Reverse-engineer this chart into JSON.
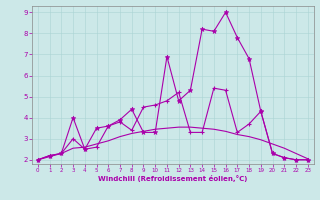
{
  "xlabel": "Windchill (Refroidissement éolien,°C)",
  "xlim": [
    -0.5,
    23.5
  ],
  "ylim": [
    1.8,
    9.3
  ],
  "xticks": [
    0,
    1,
    2,
    3,
    4,
    5,
    6,
    7,
    8,
    9,
    10,
    11,
    12,
    13,
    14,
    15,
    16,
    17,
    18,
    19,
    20,
    21,
    22,
    23
  ],
  "yticks": [
    2,
    3,
    4,
    5,
    6,
    7,
    8,
    9
  ],
  "bg_color": "#cce8e8",
  "line_color": "#aa00aa",
  "smooth_x": [
    0,
    1,
    2,
    3,
    4,
    5,
    6,
    7,
    8,
    9,
    10,
    11,
    12,
    13,
    14,
    15,
    16,
    17,
    18,
    19,
    20,
    21,
    22,
    23
  ],
  "smooth_y": [
    2.0,
    2.15,
    2.3,
    2.55,
    2.6,
    2.75,
    2.9,
    3.1,
    3.25,
    3.35,
    3.45,
    3.5,
    3.55,
    3.55,
    3.5,
    3.45,
    3.35,
    3.2,
    3.1,
    2.95,
    2.75,
    2.55,
    2.3,
    2.05
  ],
  "star_x": [
    0,
    1,
    2,
    3,
    4,
    5,
    6,
    7,
    8,
    9,
    10,
    11,
    12,
    13,
    14,
    15,
    16,
    17,
    18,
    19,
    20,
    21,
    22,
    23
  ],
  "star_y": [
    2.0,
    2.2,
    2.3,
    4.0,
    2.5,
    3.5,
    3.6,
    3.9,
    4.4,
    3.3,
    3.3,
    6.9,
    4.8,
    5.3,
    8.2,
    8.1,
    9.0,
    7.8,
    6.8,
    4.3,
    2.3,
    2.1,
    2.0,
    2.0
  ],
  "plus_x": [
    0,
    1,
    2,
    3,
    4,
    5,
    6,
    7,
    8,
    9,
    10,
    11,
    12,
    13,
    14,
    15,
    16,
    17,
    18,
    19,
    20,
    21,
    22,
    23
  ],
  "plus_y": [
    2.0,
    2.2,
    2.3,
    3.0,
    2.5,
    2.6,
    3.6,
    3.8,
    3.4,
    4.5,
    4.6,
    4.8,
    5.2,
    3.3,
    3.3,
    5.4,
    5.3,
    3.3,
    3.7,
    4.3,
    2.3,
    2.1,
    2.0,
    2.0
  ]
}
